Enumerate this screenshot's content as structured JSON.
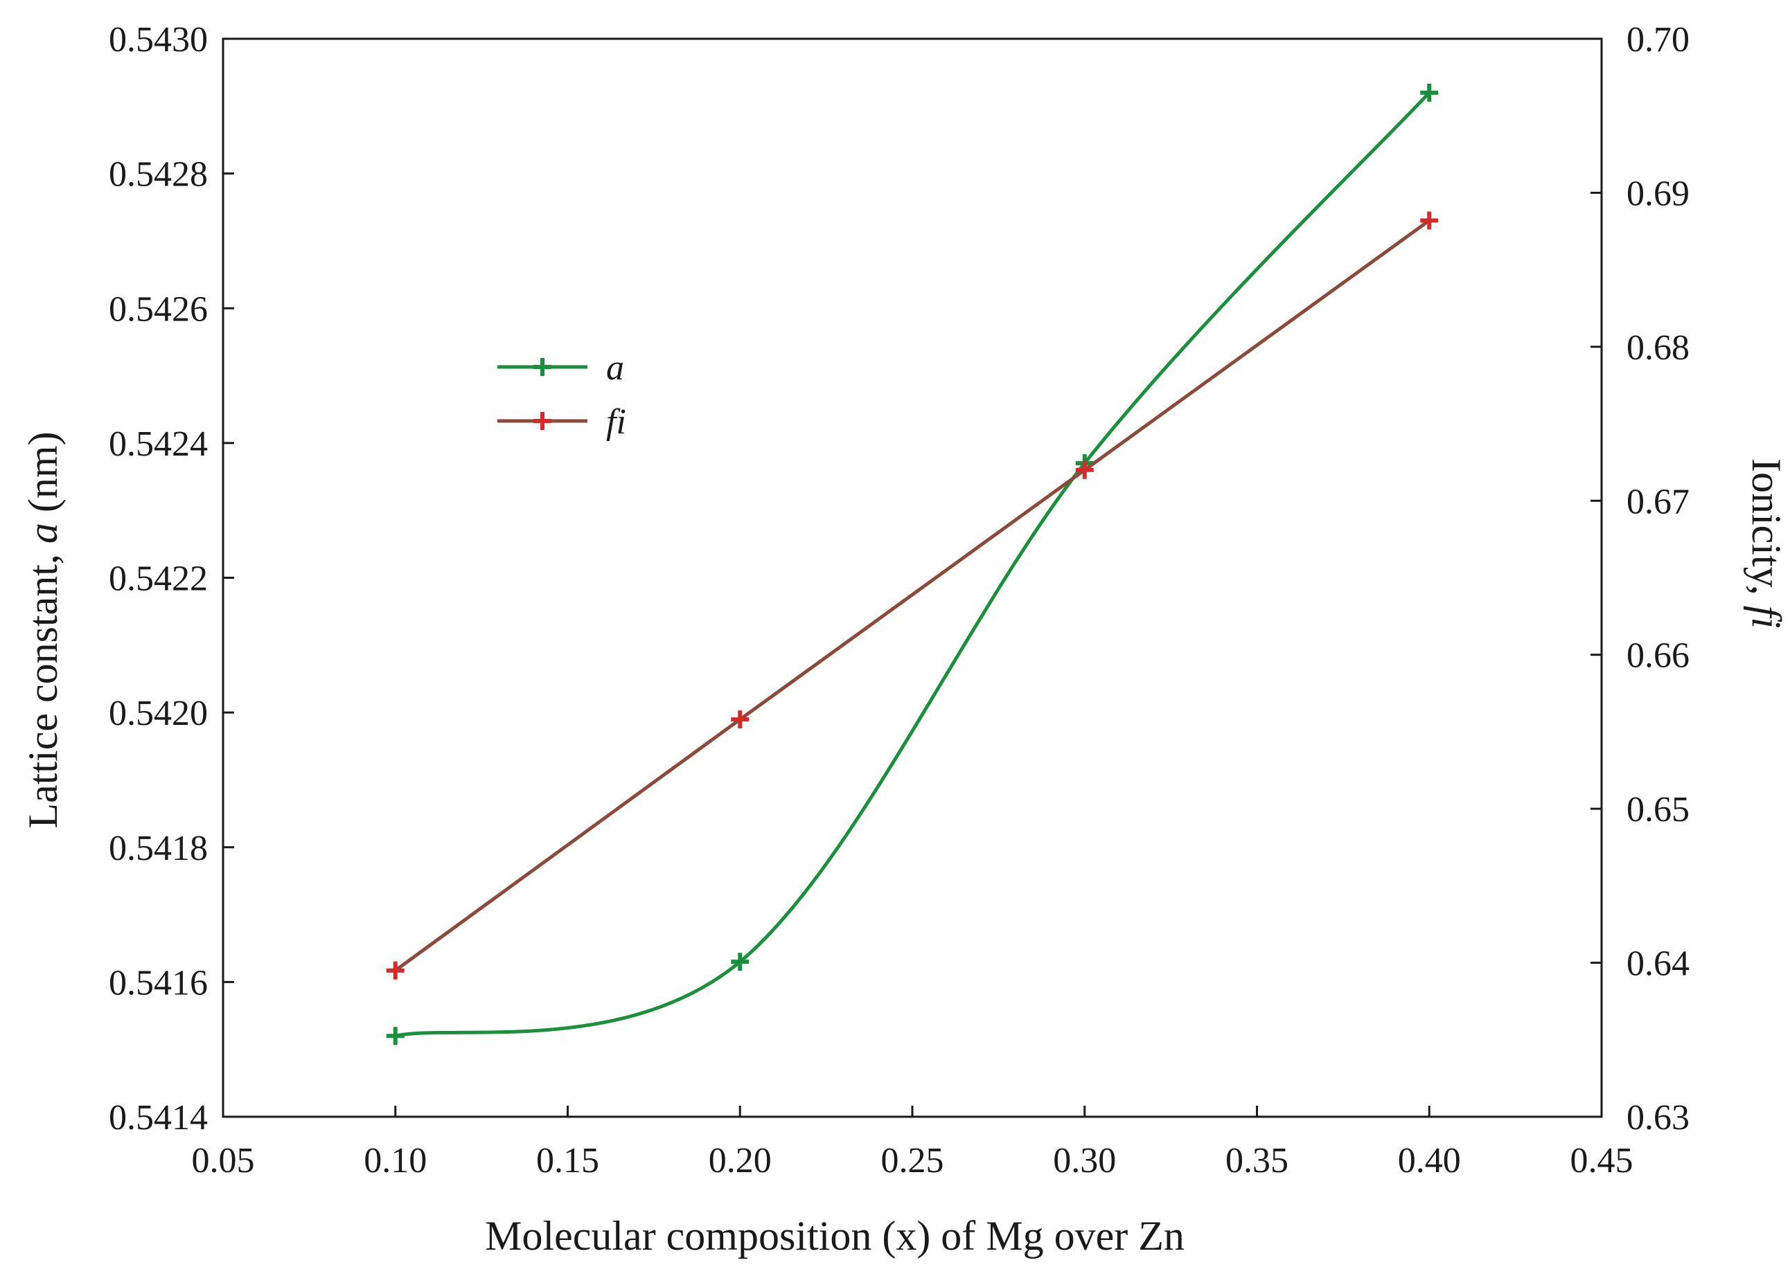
{
  "chart_data": {
    "type": "line",
    "xlabel": "Molecular composition (x) of Mg over Zn",
    "ylabel_left": {
      "prefix": "Lattice constant, ",
      "symbol": "a",
      "suffix": " (nm)"
    },
    "ylabel_right": {
      "prefix": "Ionicity, ",
      "symbol": "fi"
    },
    "xlim": [
      0.05,
      0.45
    ],
    "ylim_left": [
      0.5414,
      0.543
    ],
    "ylim_right": [
      0.63,
      0.7
    ],
    "x_ticks": [
      "0.05",
      "0.10",
      "0.15",
      "0.20",
      "0.25",
      "0.30",
      "0.35",
      "0.40",
      "0.45"
    ],
    "y_left_ticks": [
      "0.5414",
      "0.5416",
      "0.5418",
      "0.5420",
      "0.5422",
      "0.5424",
      "0.5426",
      "0.5428",
      "0.5430"
    ],
    "y_right_ticks": [
      "0.63",
      "0.64",
      "0.65",
      "0.66",
      "0.67",
      "0.68",
      "0.69",
      "0.70"
    ],
    "legend_position": "upper-left",
    "series": [
      {
        "name": "a",
        "axis": "left",
        "color": "#1a8f3c",
        "smooth": true,
        "x": [
          0.1,
          0.2,
          0.3,
          0.4
        ],
        "values": [
          0.54152,
          0.54163,
          0.54237,
          0.54292
        ]
      },
      {
        "name": "fi",
        "axis": "right",
        "color": "#8b4a3c",
        "marker_color": "#d42a2a",
        "smooth": false,
        "x": [
          0.1,
          0.2,
          0.3,
          0.4
        ],
        "values": [
          0.6395,
          0.6558,
          0.672,
          0.6882
        ]
      }
    ]
  }
}
